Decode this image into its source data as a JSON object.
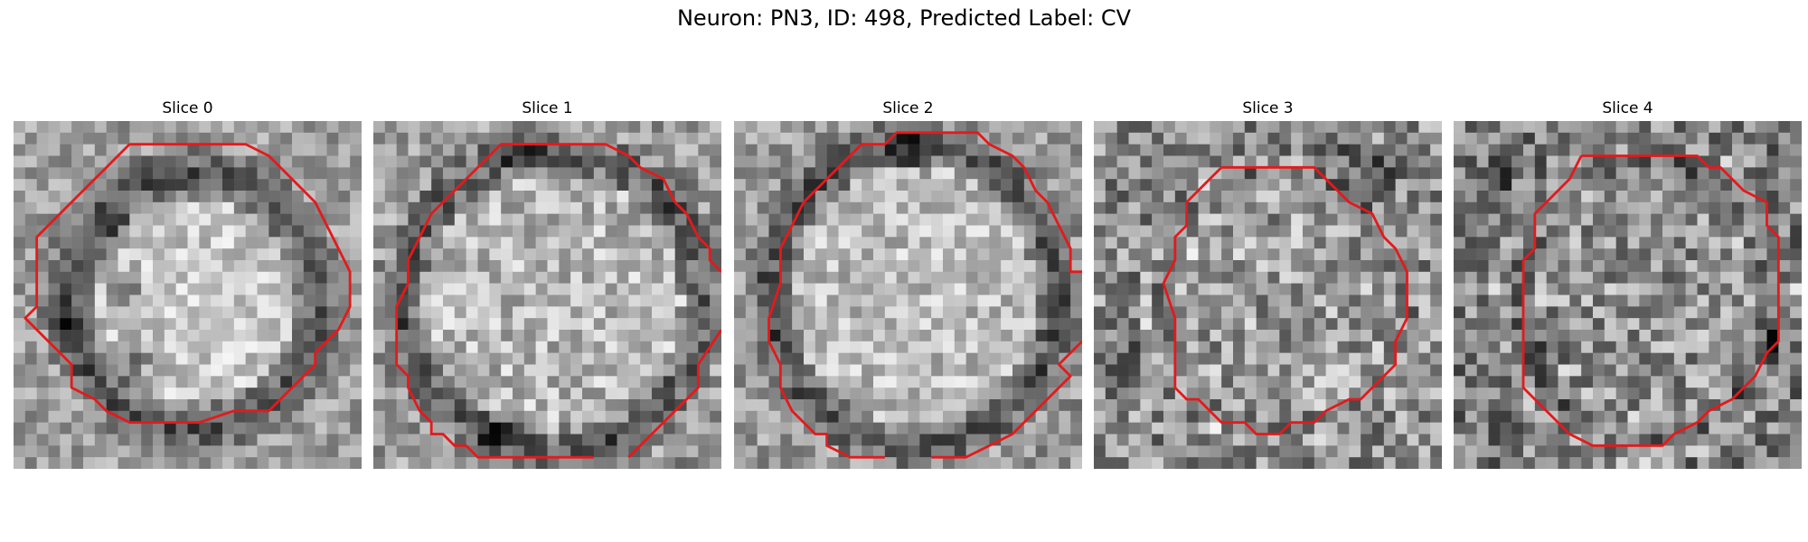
{
  "figure": {
    "title": "Neuron: PN3, ID: 498, Predicted Label: CV"
  },
  "contour_color": "#e31a1c",
  "panels": [
    {
      "title": "Slice 0",
      "image": "grayscale-em-patch",
      "overlay": "red-contour"
    },
    {
      "title": "Slice 1",
      "image": "grayscale-em-patch",
      "overlay": "red-contour"
    },
    {
      "title": "Slice 2",
      "image": "grayscale-em-patch",
      "overlay": "red-contour"
    },
    {
      "title": "Slice 3",
      "image": "grayscale-em-patch",
      "overlay": "red-contour"
    },
    {
      "title": "Slice 4",
      "image": "grayscale-em-patch",
      "overlay": "red-contour"
    }
  ]
}
